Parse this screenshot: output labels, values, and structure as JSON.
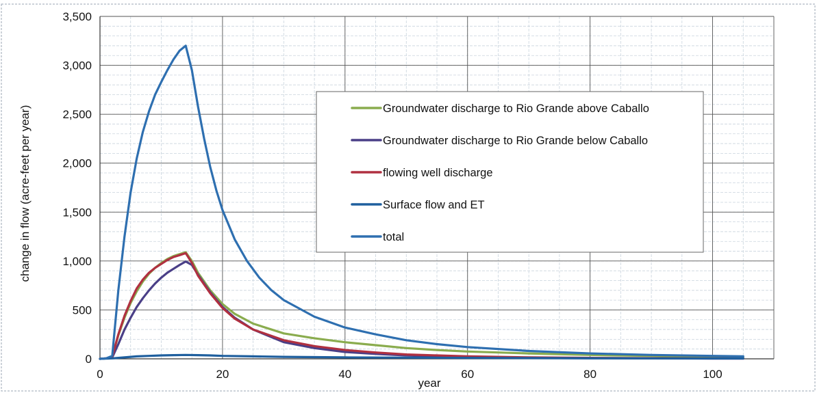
{
  "chart_data": {
    "type": "line",
    "xlabel": "year",
    "ylabel": "change in flow (acre-feet per year)",
    "xlim": [
      0,
      110
    ],
    "ylim": [
      0,
      3500
    ],
    "x_ticks": [
      0,
      20,
      40,
      60,
      80,
      100
    ],
    "x_tick_labels": [
      "0",
      "20",
      "40",
      "60",
      "80",
      "100"
    ],
    "y_ticks": [
      0,
      500,
      1000,
      1500,
      2000,
      2500,
      3000,
      3500
    ],
    "y_tick_labels": [
      "0",
      "500",
      "1,000",
      "1,500",
      "2,000",
      "2,500",
      "3,000",
      "3,500"
    ],
    "grid": true,
    "legend_position": "center-right",
    "series": [
      {
        "name": "Groundwater discharge to Rio Grande above Caballo",
        "color": "#8aac4e",
        "x": [
          0,
          1,
          2,
          3,
          4,
          5,
          6,
          7,
          8,
          9,
          10,
          11,
          12,
          13,
          14,
          15,
          16,
          18,
          20,
          22,
          25,
          30,
          35,
          40,
          45,
          50,
          55,
          60,
          70,
          80,
          90,
          100,
          105
        ],
        "y": [
          0,
          5,
          20,
          240,
          420,
          570,
          690,
          790,
          870,
          930,
          980,
          1020,
          1050,
          1070,
          1090,
          1000,
          880,
          700,
          560,
          460,
          360,
          260,
          210,
          170,
          140,
          110,
          90,
          75,
          55,
          40,
          30,
          20,
          15
        ]
      },
      {
        "name": "Groundwater discharge to Rio Grande below Caballo",
        "color": "#4a3f87",
        "x": [
          0,
          1,
          2,
          3,
          4,
          5,
          6,
          7,
          8,
          9,
          10,
          11,
          12,
          13,
          14,
          15,
          16,
          18,
          20,
          22,
          25,
          30,
          35,
          40,
          45,
          50,
          55,
          60,
          70,
          80,
          90,
          100,
          105
        ],
        "y": [
          0,
          5,
          15,
          150,
          300,
          420,
          530,
          620,
          700,
          770,
          830,
          880,
          920,
          960,
          995,
          960,
          860,
          680,
          530,
          420,
          300,
          170,
          110,
          70,
          50,
          35,
          25,
          18,
          10,
          6,
          4,
          3,
          2
        ]
      },
      {
        "name": "flowing well discharge",
        "color": "#b03040",
        "x": [
          0,
          1,
          2,
          3,
          4,
          5,
          6,
          7,
          8,
          9,
          10,
          11,
          12,
          13,
          14,
          15,
          16,
          18,
          20,
          22,
          25,
          30,
          35,
          40,
          45,
          50,
          55,
          60,
          70,
          80,
          90,
          100,
          105
        ],
        "y": [
          0,
          5,
          20,
          250,
          440,
          590,
          720,
          810,
          880,
          930,
          970,
          1010,
          1040,
          1060,
          1080,
          980,
          850,
          670,
          520,
          410,
          300,
          190,
          130,
          90,
          65,
          45,
          35,
          25,
          15,
          10,
          7,
          5,
          4
        ]
      },
      {
        "name": "Surface flow and ET",
        "color": "#1f5f9e",
        "x": [
          0,
          2,
          4,
          6,
          8,
          10,
          12,
          14,
          16,
          18,
          20,
          25,
          30,
          40,
          50,
          60,
          70,
          80,
          90,
          100,
          105
        ],
        "y": [
          0,
          5,
          15,
          25,
          30,
          35,
          38,
          40,
          38,
          35,
          30,
          25,
          20,
          15,
          12,
          10,
          8,
          6,
          5,
          4,
          4
        ]
      },
      {
        "name": "total",
        "color": "#2e6fb0",
        "x": [
          0,
          1,
          2,
          3,
          4,
          5,
          6,
          7,
          8,
          9,
          10,
          11,
          12,
          13,
          14,
          15,
          16,
          17,
          18,
          19,
          20,
          22,
          24,
          26,
          28,
          30,
          35,
          40,
          45,
          50,
          55,
          60,
          70,
          80,
          90,
          100,
          105
        ],
        "y": [
          0,
          5,
          30,
          700,
          1250,
          1700,
          2050,
          2320,
          2530,
          2700,
          2830,
          2950,
          3060,
          3150,
          3200,
          2950,
          2580,
          2250,
          1960,
          1720,
          1520,
          1220,
          1000,
          830,
          700,
          600,
          430,
          320,
          250,
          190,
          150,
          120,
          80,
          55,
          40,
          30,
          25
        ]
      }
    ]
  }
}
